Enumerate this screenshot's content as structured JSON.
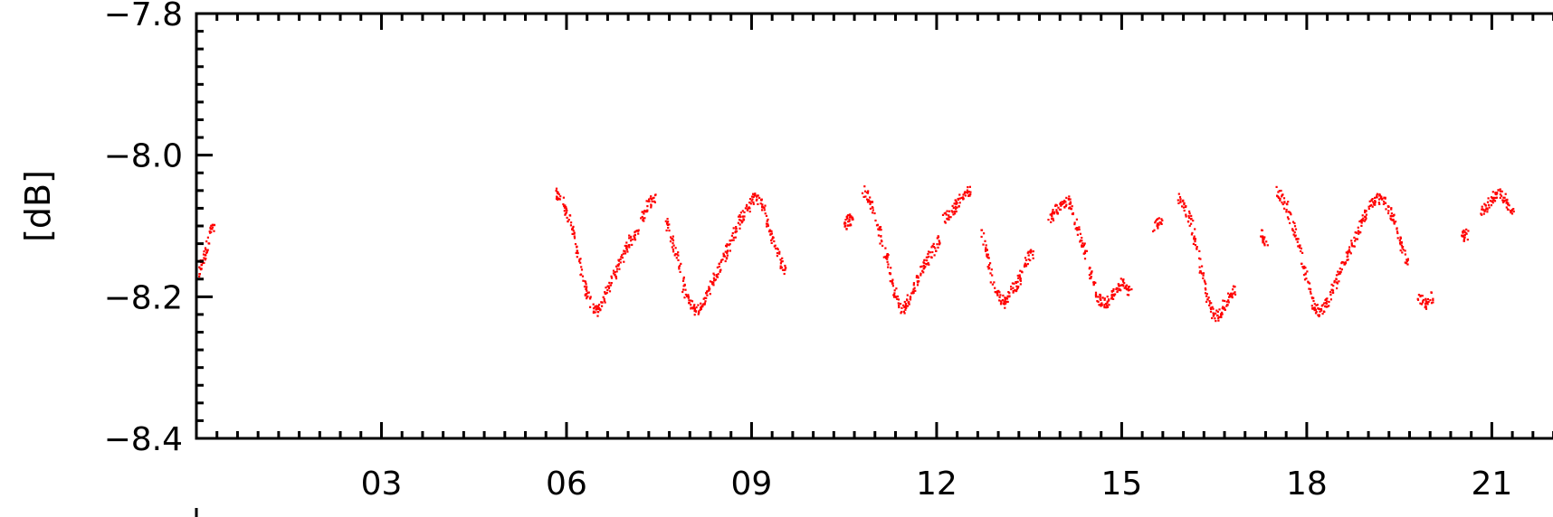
{
  "chart_data": {
    "type": "scatter",
    "title": "",
    "xlabel": "",
    "ylabel": "[dB]",
    "xlim": [
      0,
      22.3
    ],
    "ylim": [
      -8.4,
      -7.8
    ],
    "x_ticks": [
      "03",
      "06",
      "09",
      "12",
      "15",
      "18",
      "21"
    ],
    "y_ticks": [
      "-7.8",
      "-8.0",
      "-8.2",
      "-8.4"
    ],
    "grid": false,
    "legend": "none",
    "series": [
      {
        "color": "#ff0000",
        "segments": [
          {
            "x": [
              0.0,
              0.08,
              0.16,
              0.24
            ],
            "y": [
              -8.17,
              -8.15,
              -8.13,
              -8.1
            ]
          },
          {
            "x": [
              5.8,
              5.9,
              6.0,
              6.1,
              6.2,
              6.3,
              6.4,
              6.5,
              6.6,
              6.7,
              6.8,
              6.9,
              7.0,
              7.1
            ],
            "y": [
              -8.05,
              -8.06,
              -8.08,
              -8.11,
              -8.15,
              -8.19,
              -8.21,
              -8.22,
              -8.2,
              -8.18,
              -8.16,
              -8.14,
              -8.12,
              -8.11
            ]
          },
          {
            "x": [
              7.2,
              7.3,
              7.4
            ],
            "y": [
              -8.09,
              -8.07,
              -8.06
            ]
          },
          {
            "x": [
              7.6,
              7.7,
              7.8,
              7.9,
              8.0,
              8.1,
              8.2,
              8.3,
              8.4,
              8.5,
              8.6,
              8.7,
              8.8,
              8.9,
              9.0,
              9.1,
              9.2,
              9.3,
              9.4,
              9.5
            ],
            "y": [
              -8.09,
              -8.12,
              -8.15,
              -8.19,
              -8.21,
              -8.22,
              -8.21,
              -8.19,
              -8.17,
              -8.15,
              -8.13,
              -8.11,
              -8.09,
              -8.08,
              -8.06,
              -8.06,
              -8.08,
              -8.11,
              -8.13,
              -8.16
            ]
          },
          {
            "x": [
              10.5,
              10.55,
              10.6
            ],
            "y": [
              -8.1,
              -8.09,
              -8.09
            ]
          },
          {
            "x": [
              10.8,
              10.9,
              11.0,
              11.1,
              11.2,
              11.3,
              11.4,
              11.5,
              11.6,
              11.7,
              11.8,
              11.9,
              12.0
            ],
            "y": [
              -8.05,
              -8.06,
              -8.09,
              -8.12,
              -8.15,
              -8.19,
              -8.22,
              -8.21,
              -8.19,
              -8.17,
              -8.15,
              -8.14,
              -8.12
            ]
          },
          {
            "x": [
              12.1,
              12.2,
              12.3,
              12.4,
              12.5
            ],
            "y": [
              -8.09,
              -8.08,
              -8.07,
              -8.06,
              -8.05
            ]
          },
          {
            "x": [
              12.7,
              12.8,
              12.9,
              13.0,
              13.1,
              13.2,
              13.3,
              13.4,
              13.5
            ],
            "y": [
              -8.1,
              -8.14,
              -8.18,
              -8.2,
              -8.21,
              -8.19,
              -8.18,
              -8.16,
              -8.14
            ]
          },
          {
            "x": [
              13.8,
              13.9,
              14.0,
              14.1,
              14.2,
              14.3,
              14.4,
              14.5,
              14.6,
              14.7,
              14.8,
              14.9,
              15.0,
              15.1
            ],
            "y": [
              -8.09,
              -8.08,
              -8.07,
              -8.06,
              -8.08,
              -8.11,
              -8.14,
              -8.17,
              -8.2,
              -8.21,
              -8.2,
              -8.19,
              -8.18,
              -8.19
            ]
          },
          {
            "x": [
              15.5,
              15.6
            ],
            "y": [
              -8.1,
              -8.09
            ]
          },
          {
            "x": [
              15.9,
              16.0,
              16.1,
              16.2,
              16.3,
              16.4,
              16.5,
              16.6,
              16.7,
              16.8
            ],
            "y": [
              -8.06,
              -8.07,
              -8.09,
              -8.13,
              -8.17,
              -8.21,
              -8.23,
              -8.22,
              -8.2,
              -8.19
            ]
          },
          {
            "x": [
              17.25,
              17.3
            ],
            "y": [
              -8.11,
              -8.12
            ]
          },
          {
            "x": [
              17.5,
              17.6,
              17.7,
              17.8,
              17.9,
              18.0,
              18.1,
              18.2,
              18.3,
              18.4,
              18.5,
              18.6,
              18.7,
              18.8,
              18.9,
              19.0,
              19.1,
              19.2,
              19.3,
              19.4,
              19.5,
              19.6
            ],
            "y": [
              -8.05,
              -8.06,
              -8.08,
              -8.11,
              -8.14,
              -8.18,
              -8.21,
              -8.22,
              -8.21,
              -8.19,
              -8.17,
              -8.15,
              -8.13,
              -8.11,
              -8.09,
              -8.07,
              -8.06,
              -8.06,
              -8.07,
              -8.09,
              -8.12,
              -8.15
            ]
          },
          {
            "x": [
              19.8,
              19.9,
              20.0
            ],
            "y": [
              -8.2,
              -8.21,
              -8.2
            ]
          },
          {
            "x": [
              20.5,
              20.55
            ],
            "y": [
              -8.12,
              -8.11
            ]
          },
          {
            "x": [
              20.8,
              20.9,
              21.0,
              21.1,
              21.2,
              21.3
            ],
            "y": [
              -8.08,
              -8.07,
              -8.06,
              -8.05,
              -8.06,
              -8.08
            ]
          }
        ]
      }
    ]
  }
}
